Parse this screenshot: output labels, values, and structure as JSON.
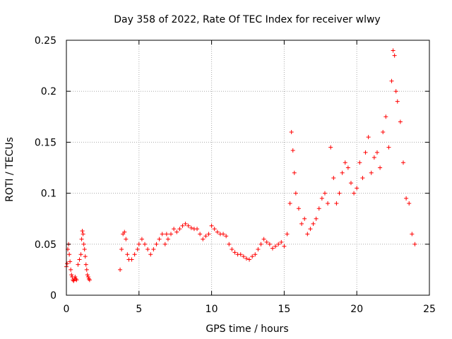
{
  "chart_data": {
    "type": "scatter",
    "title": "Day 358 of 2022, Rate Of TEC Index for receiver wlwy",
    "xlabel": "GPS time / hours",
    "ylabel": "ROTI / TECUs",
    "xlim": [
      0,
      25
    ],
    "ylim": [
      0,
      0.25
    ],
    "x_ticks": [
      0,
      5,
      10,
      15,
      20,
      25
    ],
    "y_ticks": [
      0,
      0.05,
      0.1,
      0.15,
      0.2,
      0.25
    ],
    "x_tick_labels": [
      "0",
      "5",
      "10",
      "15",
      "20",
      "25"
    ],
    "y_tick_labels": [
      "0",
      "0.05",
      "0.1",
      "0.15",
      "0.2",
      "0.25"
    ],
    "grid": true,
    "marker": "+",
    "marker_color": "#ff0000",
    "series": [
      {
        "name": "ROTI",
        "x": [
          0.0,
          0.05,
          0.1,
          0.15,
          0.2,
          0.25,
          0.3,
          0.35,
          0.4,
          0.45,
          0.5,
          0.55,
          0.6,
          0.65,
          0.7,
          0.8,
          0.9,
          1.0,
          1.05,
          1.1,
          1.15,
          1.2,
          1.25,
          1.3,
          1.35,
          1.4,
          1.45,
          1.5,
          1.55,
          1.6,
          3.7,
          3.8,
          3.9,
          4.0,
          4.1,
          4.2,
          4.3,
          4.5,
          4.7,
          4.9,
          5.0,
          5.2,
          5.4,
          5.6,
          5.8,
          6.0,
          6.2,
          6.4,
          6.6,
          6.8,
          6.9,
          7.0,
          7.2,
          7.4,
          7.6,
          7.8,
          8.0,
          8.2,
          8.4,
          8.6,
          8.8,
          9.0,
          9.2,
          9.4,
          9.6,
          9.8,
          10.0,
          10.2,
          10.4,
          10.6,
          10.8,
          11.0,
          11.2,
          11.4,
          11.6,
          11.8,
          12.0,
          12.2,
          12.4,
          12.6,
          12.8,
          13.0,
          13.2,
          13.4,
          13.6,
          13.8,
          14.0,
          14.2,
          14.4,
          14.6,
          14.8,
          15.0,
          15.2,
          15.4,
          15.5,
          15.6,
          15.7,
          15.8,
          16.0,
          16.2,
          16.4,
          16.6,
          16.8,
          17.0,
          17.2,
          17.4,
          17.6,
          17.8,
          18.0,
          18.2,
          18.4,
          18.6,
          18.8,
          19.0,
          19.2,
          19.4,
          19.6,
          19.8,
          20.0,
          20.2,
          20.4,
          20.6,
          20.8,
          21.0,
          21.2,
          21.4,
          21.6,
          21.8,
          22.0,
          22.2,
          22.4,
          22.5,
          22.6,
          22.7,
          22.8,
          23.0,
          23.2,
          23.4,
          23.6,
          23.8,
          24.0
        ],
        "y": [
          0.028,
          0.031,
          0.045,
          0.05,
          0.04,
          0.033,
          0.025,
          0.02,
          0.018,
          0.015,
          0.014,
          0.016,
          0.018,
          0.016,
          0.015,
          0.03,
          0.035,
          0.04,
          0.055,
          0.063,
          0.06,
          0.05,
          0.045,
          0.038,
          0.03,
          0.025,
          0.02,
          0.018,
          0.016,
          0.015,
          0.025,
          0.045,
          0.06,
          0.062,
          0.055,
          0.04,
          0.035,
          0.035,
          0.04,
          0.045,
          0.05,
          0.055,
          0.05,
          0.045,
          0.04,
          0.045,
          0.05,
          0.055,
          0.06,
          0.05,
          0.06,
          0.055,
          0.06,
          0.065,
          0.062,
          0.065,
          0.068,
          0.07,
          0.068,
          0.066,
          0.065,
          0.065,
          0.06,
          0.055,
          0.058,
          0.06,
          0.068,
          0.065,
          0.062,
          0.06,
          0.06,
          0.058,
          0.05,
          0.045,
          0.042,
          0.04,
          0.04,
          0.038,
          0.036,
          0.035,
          0.038,
          0.04,
          0.045,
          0.05,
          0.055,
          0.052,
          0.05,
          0.046,
          0.048,
          0.05,
          0.052,
          0.048,
          0.06,
          0.09,
          0.16,
          0.142,
          0.12,
          0.1,
          0.085,
          0.07,
          0.075,
          0.06,
          0.065,
          0.07,
          0.075,
          0.085,
          0.095,
          0.1,
          0.09,
          0.145,
          0.115,
          0.09,
          0.1,
          0.12,
          0.13,
          0.125,
          0.11,
          0.1,
          0.105,
          0.13,
          0.115,
          0.14,
          0.155,
          0.12,
          0.135,
          0.14,
          0.125,
          0.16,
          0.175,
          0.145,
          0.21,
          0.24,
          0.235,
          0.2,
          0.19,
          0.17,
          0.13,
          0.095,
          0.09,
          0.06,
          0.05
        ]
      }
    ]
  }
}
